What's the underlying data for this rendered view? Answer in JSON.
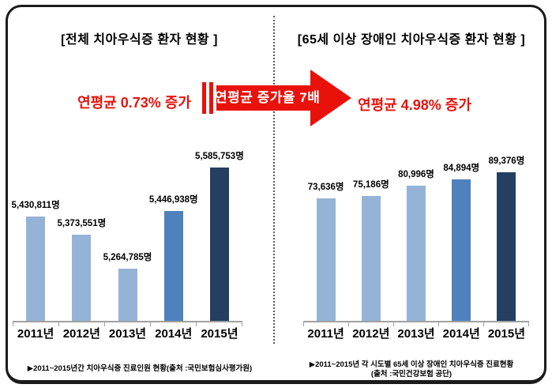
{
  "left_panel": {
    "title": "[전체 치아우식증 환자 현황 ]",
    "highlight": "연평균 0.73% 증가",
    "source": "▶2011~2015년간 치아우식증 진료인원 현황(출처 :국민보험심사평가원)"
  },
  "right_panel": {
    "title": "[65세 이상 장애인 치아우식증 환자 현황 ]",
    "highlight": "연평균 4.98% 증가",
    "source_line1": "▶2011~2015년 각 시도별 65세 이상 장애인 치아우식증 진료현황",
    "source_line2": "(출처 :국민건강보험 공단)"
  },
  "arrow": {
    "label": "연평균 증가율 7배",
    "color": "#e8120b"
  },
  "colors": {
    "red": "#e8120b",
    "bar_light_blue": "#95b3d7",
    "bar_medium_blue": "#4f81bd",
    "bar_dark_navy": "#243f60",
    "axis_gray": "#a0a0a0"
  },
  "chart_data": [
    {
      "id": "overall-dental-caries",
      "type": "bar",
      "title": "[전체 치아우식증 환자 현황 ]",
      "annotation": "연평균 0.73% 증가",
      "categories": [
        "2011년",
        "2012년",
        "2013년",
        "2014년",
        "2015년"
      ],
      "values": [
        5430811,
        5373551,
        5264785,
        5446938,
        5585753
      ],
      "value_labels": [
        "5,430,811명",
        "5,373,551명",
        "5,264,785명",
        "5,446,938명",
        "5,585,753명"
      ],
      "ylim": [
        5100000,
        5600000
      ],
      "grid": false,
      "legend": false,
      "bar_colors": [
        "#95b3d7",
        "#95b3d7",
        "#95b3d7",
        "#4f81bd",
        "#243f60"
      ]
    },
    {
      "id": "elderly-disabled-dental-caries",
      "type": "bar",
      "title": "[65세 이상 장애인 치아우식증 환자 현황 ]",
      "annotation": "연평균 4.98% 증가",
      "categories": [
        "2011년",
        "2012년",
        "2013년",
        "2014년",
        "2015년"
      ],
      "values": [
        73636,
        75186,
        80996,
        84894,
        89376
      ],
      "value_labels": [
        "73,636명",
        "75,186명",
        "80,996명",
        "84,894명",
        "89,376명"
      ],
      "ylim": [
        0,
        95000
      ],
      "grid": false,
      "legend": false,
      "bar_colors": [
        "#95b3d7",
        "#95b3d7",
        "#95b3d7",
        "#4f81bd",
        "#243f60"
      ]
    }
  ]
}
